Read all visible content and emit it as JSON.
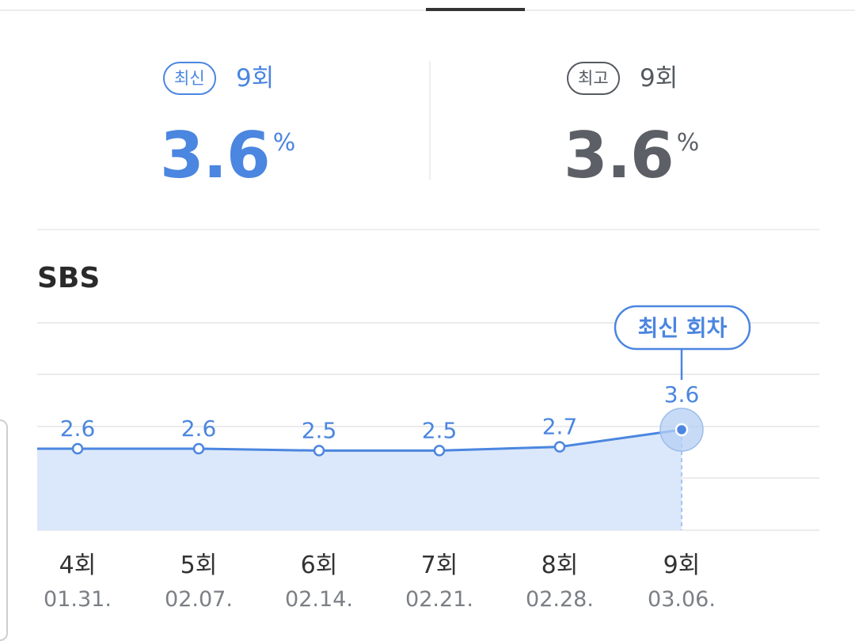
{
  "summary": {
    "latest": {
      "badge": "최신",
      "episode": "9회",
      "value": "3.6",
      "unit": "%"
    },
    "best": {
      "badge": "최고",
      "episode": "9회",
      "value": "3.6",
      "unit": "%"
    }
  },
  "channel": "SBS",
  "chart_data": {
    "type": "area",
    "categories": [
      "4회",
      "5회",
      "6회",
      "7회",
      "8회",
      "9회"
    ],
    "dates": [
      "01.31.",
      "02.07.",
      "02.14.",
      "02.21.",
      "02.28.",
      "03.06."
    ],
    "values": [
      2.6,
      2.6,
      2.5,
      2.5,
      2.7,
      3.6
    ],
    "data_labels": [
      "2.6",
      "2.6",
      "2.5",
      "2.5",
      "2.7",
      "3.6"
    ],
    "highlight_label": "최신 회차",
    "highlight_index": 5,
    "grid": true,
    "legend": "none",
    "colors": {
      "line": "#4b86e0",
      "fill": "#dbe8fb",
      "label": "#4b86e0",
      "grid": "#ebebeb"
    }
  }
}
